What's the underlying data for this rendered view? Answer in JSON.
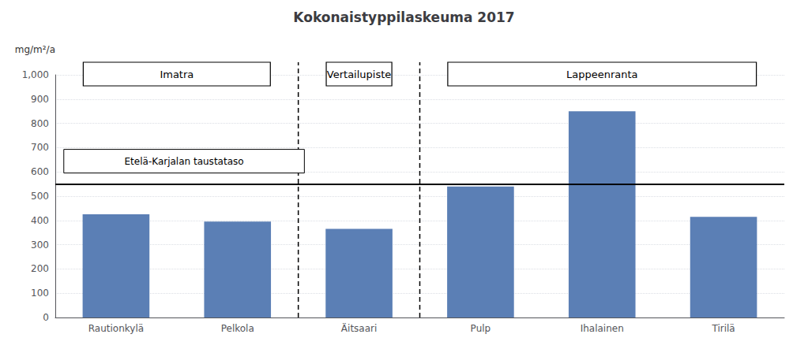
{
  "chart_data": {
    "type": "bar",
    "title": "Kokonaistyppilaskeuma 2017",
    "ylabel": "mg/m²/a",
    "categories": [
      "Rautionkylä",
      "Pelkola",
      "Äitsaari",
      "Pulp",
      "Ihalainen",
      "Tirilä"
    ],
    "values": [
      425,
      395,
      365,
      540,
      850,
      415
    ],
    "color": "#5b7fb5",
    "ylim": [
      0,
      1000
    ],
    "yticks": [
      0,
      100,
      200,
      300,
      400,
      500,
      600,
      700,
      800,
      900,
      1000
    ],
    "grid": true,
    "reference_line": {
      "value": 550,
      "label": "Etelä-Karjalan taustataso",
      "color": "#000000"
    },
    "groups": [
      {
        "label": "Imatra",
        "categories": [
          "Rautionkylä",
          "Pelkola"
        ]
      },
      {
        "label": "Vertailupiste",
        "categories": [
          "Äitsaari"
        ]
      },
      {
        "label": "Lappeenranta",
        "categories": [
          "Pulp",
          "Ihalainen",
          "Tirilä"
        ]
      }
    ]
  }
}
